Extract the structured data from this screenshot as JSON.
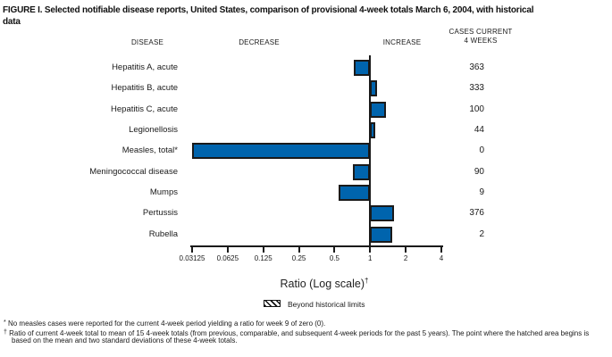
{
  "title": {
    "line1": "FIGURE I. Selected notifiable disease reports, United States, comparison of provisional 4-week totals March 6, 2004, with historical",
    "line2": "data"
  },
  "headers": {
    "disease": "DISEASE",
    "decrease": "DECREASE",
    "increase": "INCREASE",
    "cases_line1": "CASES CURRENT",
    "cases_line2": "4 WEEKS"
  },
  "chart_data": {
    "type": "bar",
    "orientation": "horizontal",
    "scale": "log2",
    "xlabel": "Ratio (Log scale)",
    "xlabel_sup": "†",
    "axis_ticks": [
      "0.03125",
      "0.0625",
      "0.125",
      "0.25",
      "0.5",
      "1",
      "2",
      "4"
    ],
    "axis_range": [
      0.03125,
      4
    ],
    "baseline": 1,
    "grid": false,
    "bar_color": "#0064ad",
    "bar_border": "#1a1a1a",
    "rows": [
      {
        "label": "Hepatitis A, acute",
        "ratio": 0.73,
        "cases": "363"
      },
      {
        "label": "Hepatitis B, acute",
        "ratio": 1.15,
        "cases": "333"
      },
      {
        "label": "Hepatitis C, acute",
        "ratio": 1.37,
        "cases": "100"
      },
      {
        "label": "Legionellosis",
        "ratio": 1.11,
        "cases": "44"
      },
      {
        "label": "Measles, total*",
        "ratio": 0,
        "cases": "0"
      },
      {
        "label": "Meningococcal disease",
        "ratio": 0.72,
        "cases": "90"
      },
      {
        "label": "Mumps",
        "ratio": 0.54,
        "cases": "9"
      },
      {
        "label": "Pertussis",
        "ratio": 1.6,
        "cases": "376"
      },
      {
        "label": "Rubella",
        "ratio": 1.55,
        "cases": "2"
      }
    ]
  },
  "legend": {
    "swatch": "diagonal-hatch",
    "label": "Beyond historical limits"
  },
  "footnotes": [
    {
      "marker": "*",
      "text": "No measles cases were reported for the current 4-week period yielding a ratio for week 9 of zero (0)."
    },
    {
      "marker": "†",
      "text": "Ratio of current 4-week total to mean of 15 4-week totals (from previous, comparable, and subsequent 4-week periods for the past 5 years). The point where the hatched area begins is based on the mean and two standard deviations of these 4-week totals."
    }
  ]
}
